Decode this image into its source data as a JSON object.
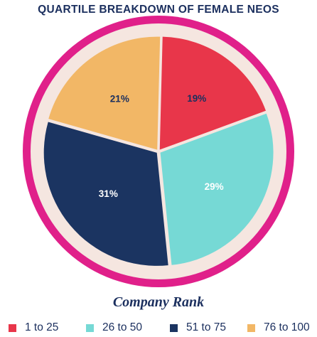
{
  "title": "QUARTILE BREAKDOWN OF FEMALE NEOS",
  "chart_data": {
    "type": "pie",
    "title": "QUARTILE BREAKDOWN OF FEMALE NEOS",
    "legend_title": "Company Rank",
    "legend_position": "bottom",
    "slices": [
      {
        "label": "1 to 25",
        "value": 19,
        "value_label": "19%",
        "color": "#e8364a",
        "label_color": "#1b2f5e"
      },
      {
        "label": "26 to 50",
        "value": 29,
        "value_label": "29%",
        "color": "#76d9d5",
        "label_color": "#ffffff"
      },
      {
        "label": "51 to 75",
        "value": 31,
        "value_label": "31%",
        "color": "#1b3461",
        "label_color": "#ffffff"
      },
      {
        "label": "76 to 100",
        "value": 21,
        "value_label": "21%",
        "color": "#f2b766",
        "label_color": "#1b2f5e"
      }
    ],
    "ring_color": "#e0208a",
    "separator_color": "#f5e6e0"
  }
}
